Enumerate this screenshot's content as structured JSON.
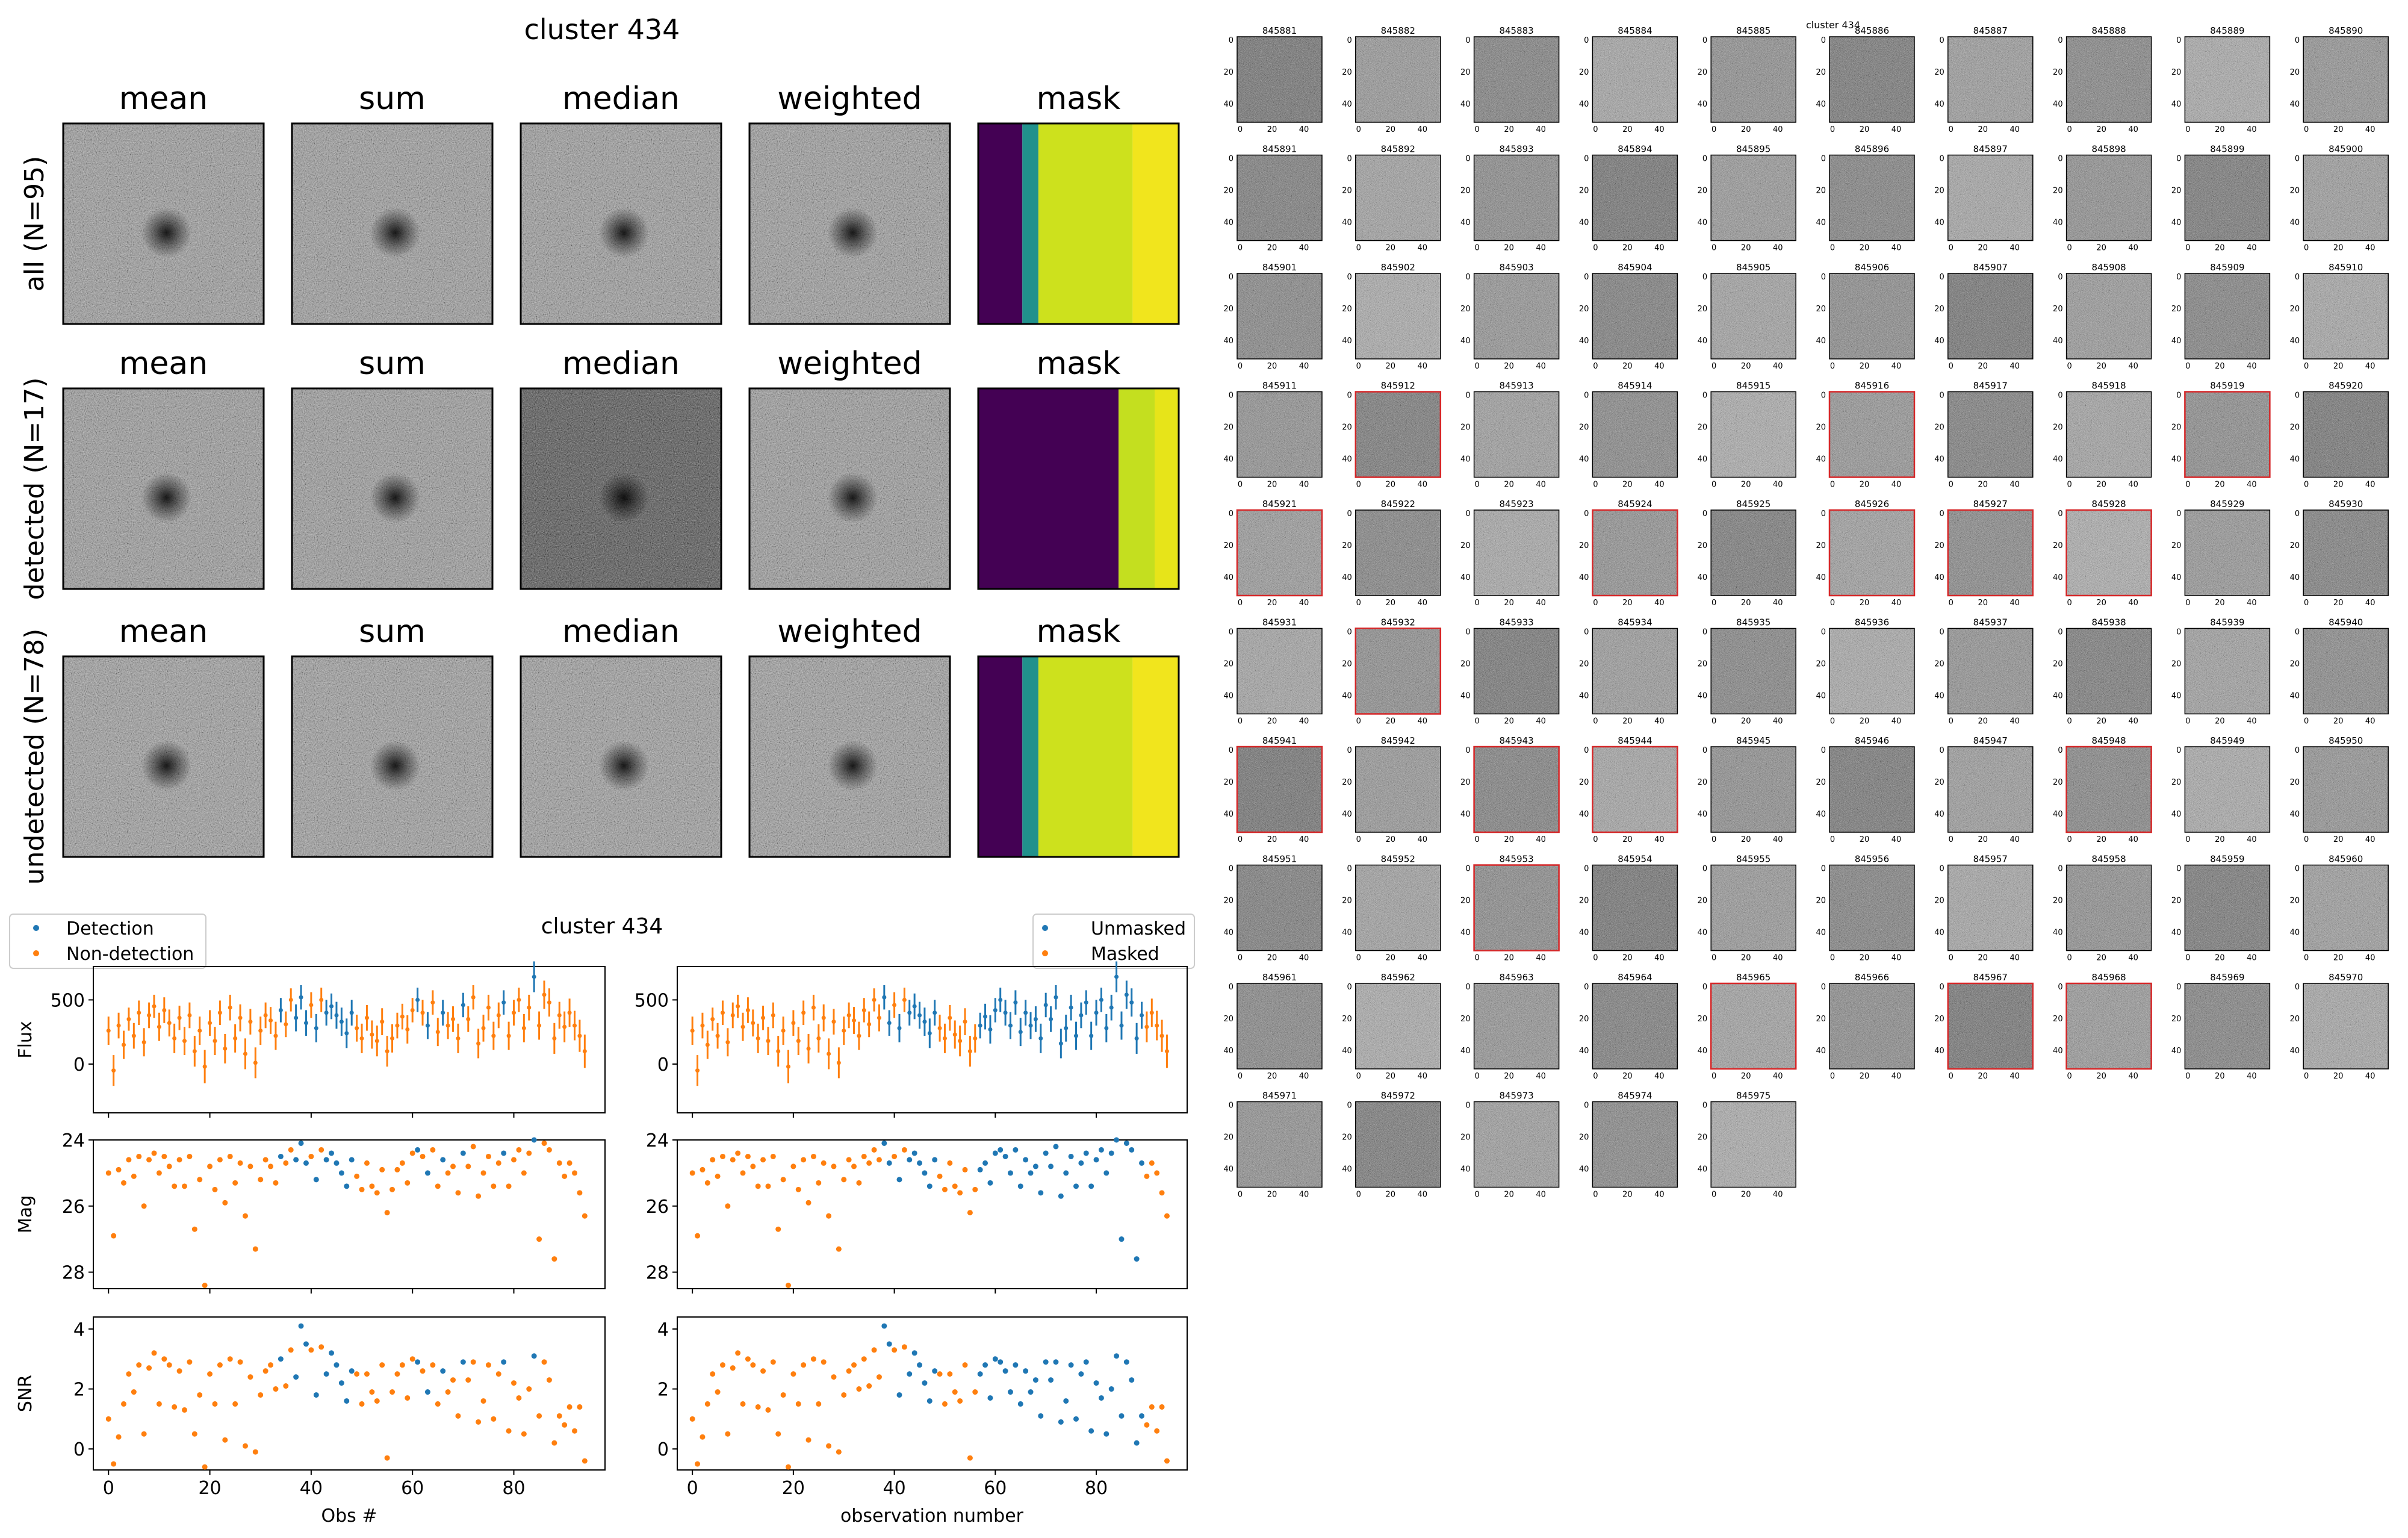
{
  "title": "cluster 434",
  "stack_columns": [
    "mean",
    "sum",
    "median",
    "weighted",
    "mask"
  ],
  "stack_rows": [
    "all (N=95)",
    "detected (N=17)",
    "undetected (N=78)"
  ],
  "lightcurve_title": "cluster 434",
  "legend_left": [
    "Detection",
    "Non-detection"
  ],
  "legend_right": [
    "Unmasked",
    "Masked"
  ],
  "ylabels": [
    "Flux",
    "Mag",
    "SNR"
  ],
  "xlabel_left": "Obs #",
  "xlabel_right": "observation number",
  "colors": {
    "blue": "#1f77b4",
    "orange": "#ff7f0e",
    "red": "#d62728"
  },
  "grid_title": "cluster 434",
  "cutout_start_id": 845881,
  "cutout_count": 95,
  "flagged_ids": [
    845912,
    845916,
    845919,
    845921,
    845924,
    845926,
    845927,
    845928,
    845932,
    845941,
    845943,
    845944,
    845948,
    845953,
    845965,
    845967,
    845968
  ],
  "chart_data": [
    {
      "type": "scatter",
      "title": "cluster 434",
      "panels": [
        "Flux",
        "Mag",
        "SNR"
      ],
      "x": {
        "label_left": "Obs #",
        "label_right": "observation number",
        "range": [
          -3,
          98
        ],
        "ticks": [
          0,
          20,
          40,
          60,
          80
        ]
      },
      "flux": {
        "range": [
          -380,
          760
        ],
        "ticks": [
          0,
          500
        ],
        "values": [
          260,
          -50,
          300,
          150,
          350,
          220,
          400,
          170,
          380,
          450,
          290,
          420,
          320,
          200,
          360,
          180,
          380,
          100,
          260,
          -20,
          320,
          180,
          400,
          120,
          440,
          200,
          360,
          80,
          330,
          10,
          260,
          380,
          340,
          220,
          420,
          310,
          500,
          360,
          520,
          320,
          460,
          280,
          500,
          400,
          450,
          380,
          330,
          240,
          400,
          280,
          200,
          360,
          230,
          180,
          330,
          100,
          200,
          300,
          370,
          270,
          420,
          500,
          400,
          300,
          480,
          250,
          400,
          300,
          350,
          200,
          460,
          350,
          520,
          160,
          280,
          440,
          220,
          380,
          480,
          220,
          400,
          500,
          280,
          440,
          680,
          300,
          540,
          480,
          200,
          380,
          290,
          400,
          300,
          220,
          100
        ],
        "errors": [
          110,
          120,
          100,
          110,
          90,
          100,
          95,
          110,
          100,
          90,
          110,
          100,
          105,
          115,
          95,
          110,
          100,
          120,
          110,
          130,
          100,
          110,
          95,
          115,
          100,
          110,
          105,
          120,
          100,
          120,
          110,
          100,
          105,
          110,
          95,
          100,
          90,
          105,
          95,
          100,
          100,
          110,
          95,
          100,
          100,
          105,
          110,
          115,
          100,
          105,
          115,
          100,
          110,
          120,
          105,
          120,
          110,
          100,
          100,
          110,
          95,
          95,
          100,
          105,
          95,
          110,
          100,
          105,
          100,
          115,
          95,
          100,
          95,
          115,
          105,
          100,
          110,
          100,
          95,
          110,
          100,
          95,
          110,
          100,
          120,
          110,
          110,
          110,
          120,
          105,
          120,
          110,
          115,
          125,
          130
        ]
      },
      "mag": {
        "range": [
          24,
          28.5
        ],
        "ticks": [
          24,
          26,
          28
        ],
        "values": [
          25.0,
          26.9,
          24.9,
          25.3,
          24.6,
          25.1,
          24.5,
          26.0,
          24.6,
          24.4,
          25.0,
          24.5,
          24.8,
          25.4,
          24.6,
          25.4,
          24.5,
          26.7,
          25.2,
          28.4,
          24.8,
          25.5,
          24.6,
          25.9,
          24.5,
          25.3,
          24.7,
          26.3,
          24.8,
          27.3,
          25.2,
          24.6,
          24.8,
          25.3,
          24.5,
          24.7,
          24.3,
          24.6,
          24.1,
          24.7,
          24.5,
          25.2,
          24.3,
          24.6,
          24.4,
          24.7,
          25.0,
          25.4,
          24.6,
          25.1,
          25.5,
          24.7,
          25.4,
          25.6,
          24.9,
          26.2,
          25.5,
          24.9,
          24.7,
          25.3,
          24.4,
          24.3,
          24.5,
          25.0,
          24.3,
          25.4,
          24.6,
          25.0,
          24.8,
          25.6,
          24.4,
          24.8,
          24.2,
          25.7,
          25.0,
          24.5,
          25.4,
          24.7,
          24.4,
          25.4,
          24.6,
          24.3,
          25.0,
          24.4,
          24.0,
          27.0,
          24.1,
          24.3,
          27.6,
          24.7,
          25.1,
          24.7,
          25.0,
          25.6,
          26.3
        ]
      },
      "snr": {
        "range": [
          -0.7,
          4.4
        ],
        "ticks": [
          0,
          2,
          4
        ],
        "values": [
          1.0,
          -0.5,
          0.4,
          1.5,
          2.5,
          1.9,
          2.8,
          0.5,
          2.7,
          3.2,
          1.5,
          3.0,
          2.8,
          1.4,
          2.6,
          1.3,
          2.9,
          0.5,
          1.8,
          -0.6,
          2.5,
          1.5,
          2.8,
          0.3,
          3.0,
          1.5,
          2.9,
          0.1,
          2.4,
          -0.1,
          1.8,
          2.6,
          2.8,
          2.0,
          3.0,
          2.1,
          3.3,
          2.4,
          4.1,
          3.5,
          3.3,
          1.8,
          3.4,
          2.5,
          3.2,
          2.8,
          2.2,
          1.6,
          2.6,
          2.5,
          1.5,
          2.5,
          1.9,
          1.6,
          2.8,
          -0.3,
          1.9,
          2.5,
          2.8,
          1.7,
          3.0,
          2.9,
          2.6,
          1.9,
          2.8,
          1.5,
          2.6,
          1.9,
          2.3,
          1.1,
          2.9,
          2.3,
          2.9,
          0.9,
          1.6,
          2.8,
          1.0,
          2.5,
          2.9,
          0.6,
          2.2,
          1.7,
          0.5,
          2.0,
          3.1,
          1.1,
          2.9,
          2.3,
          0.2,
          1.1,
          0.8,
          1.4,
          0.6,
          1.4,
          -0.4
        ]
      },
      "left_detection": [
        34,
        37,
        38,
        39,
        41,
        43,
        44,
        45,
        46,
        47,
        48,
        61,
        63,
        66,
        70,
        78,
        84
      ],
      "right_unmasked": [
        38,
        39,
        41,
        43,
        44,
        45,
        46,
        47,
        48,
        57,
        58,
        59,
        60,
        61,
        62,
        63,
        64,
        65,
        66,
        67,
        68,
        69,
        70,
        71,
        72,
        73,
        74,
        75,
        76,
        77,
        78,
        79,
        80,
        81,
        82,
        83,
        84,
        85,
        86,
        87,
        88,
        89
      ]
    }
  ]
}
